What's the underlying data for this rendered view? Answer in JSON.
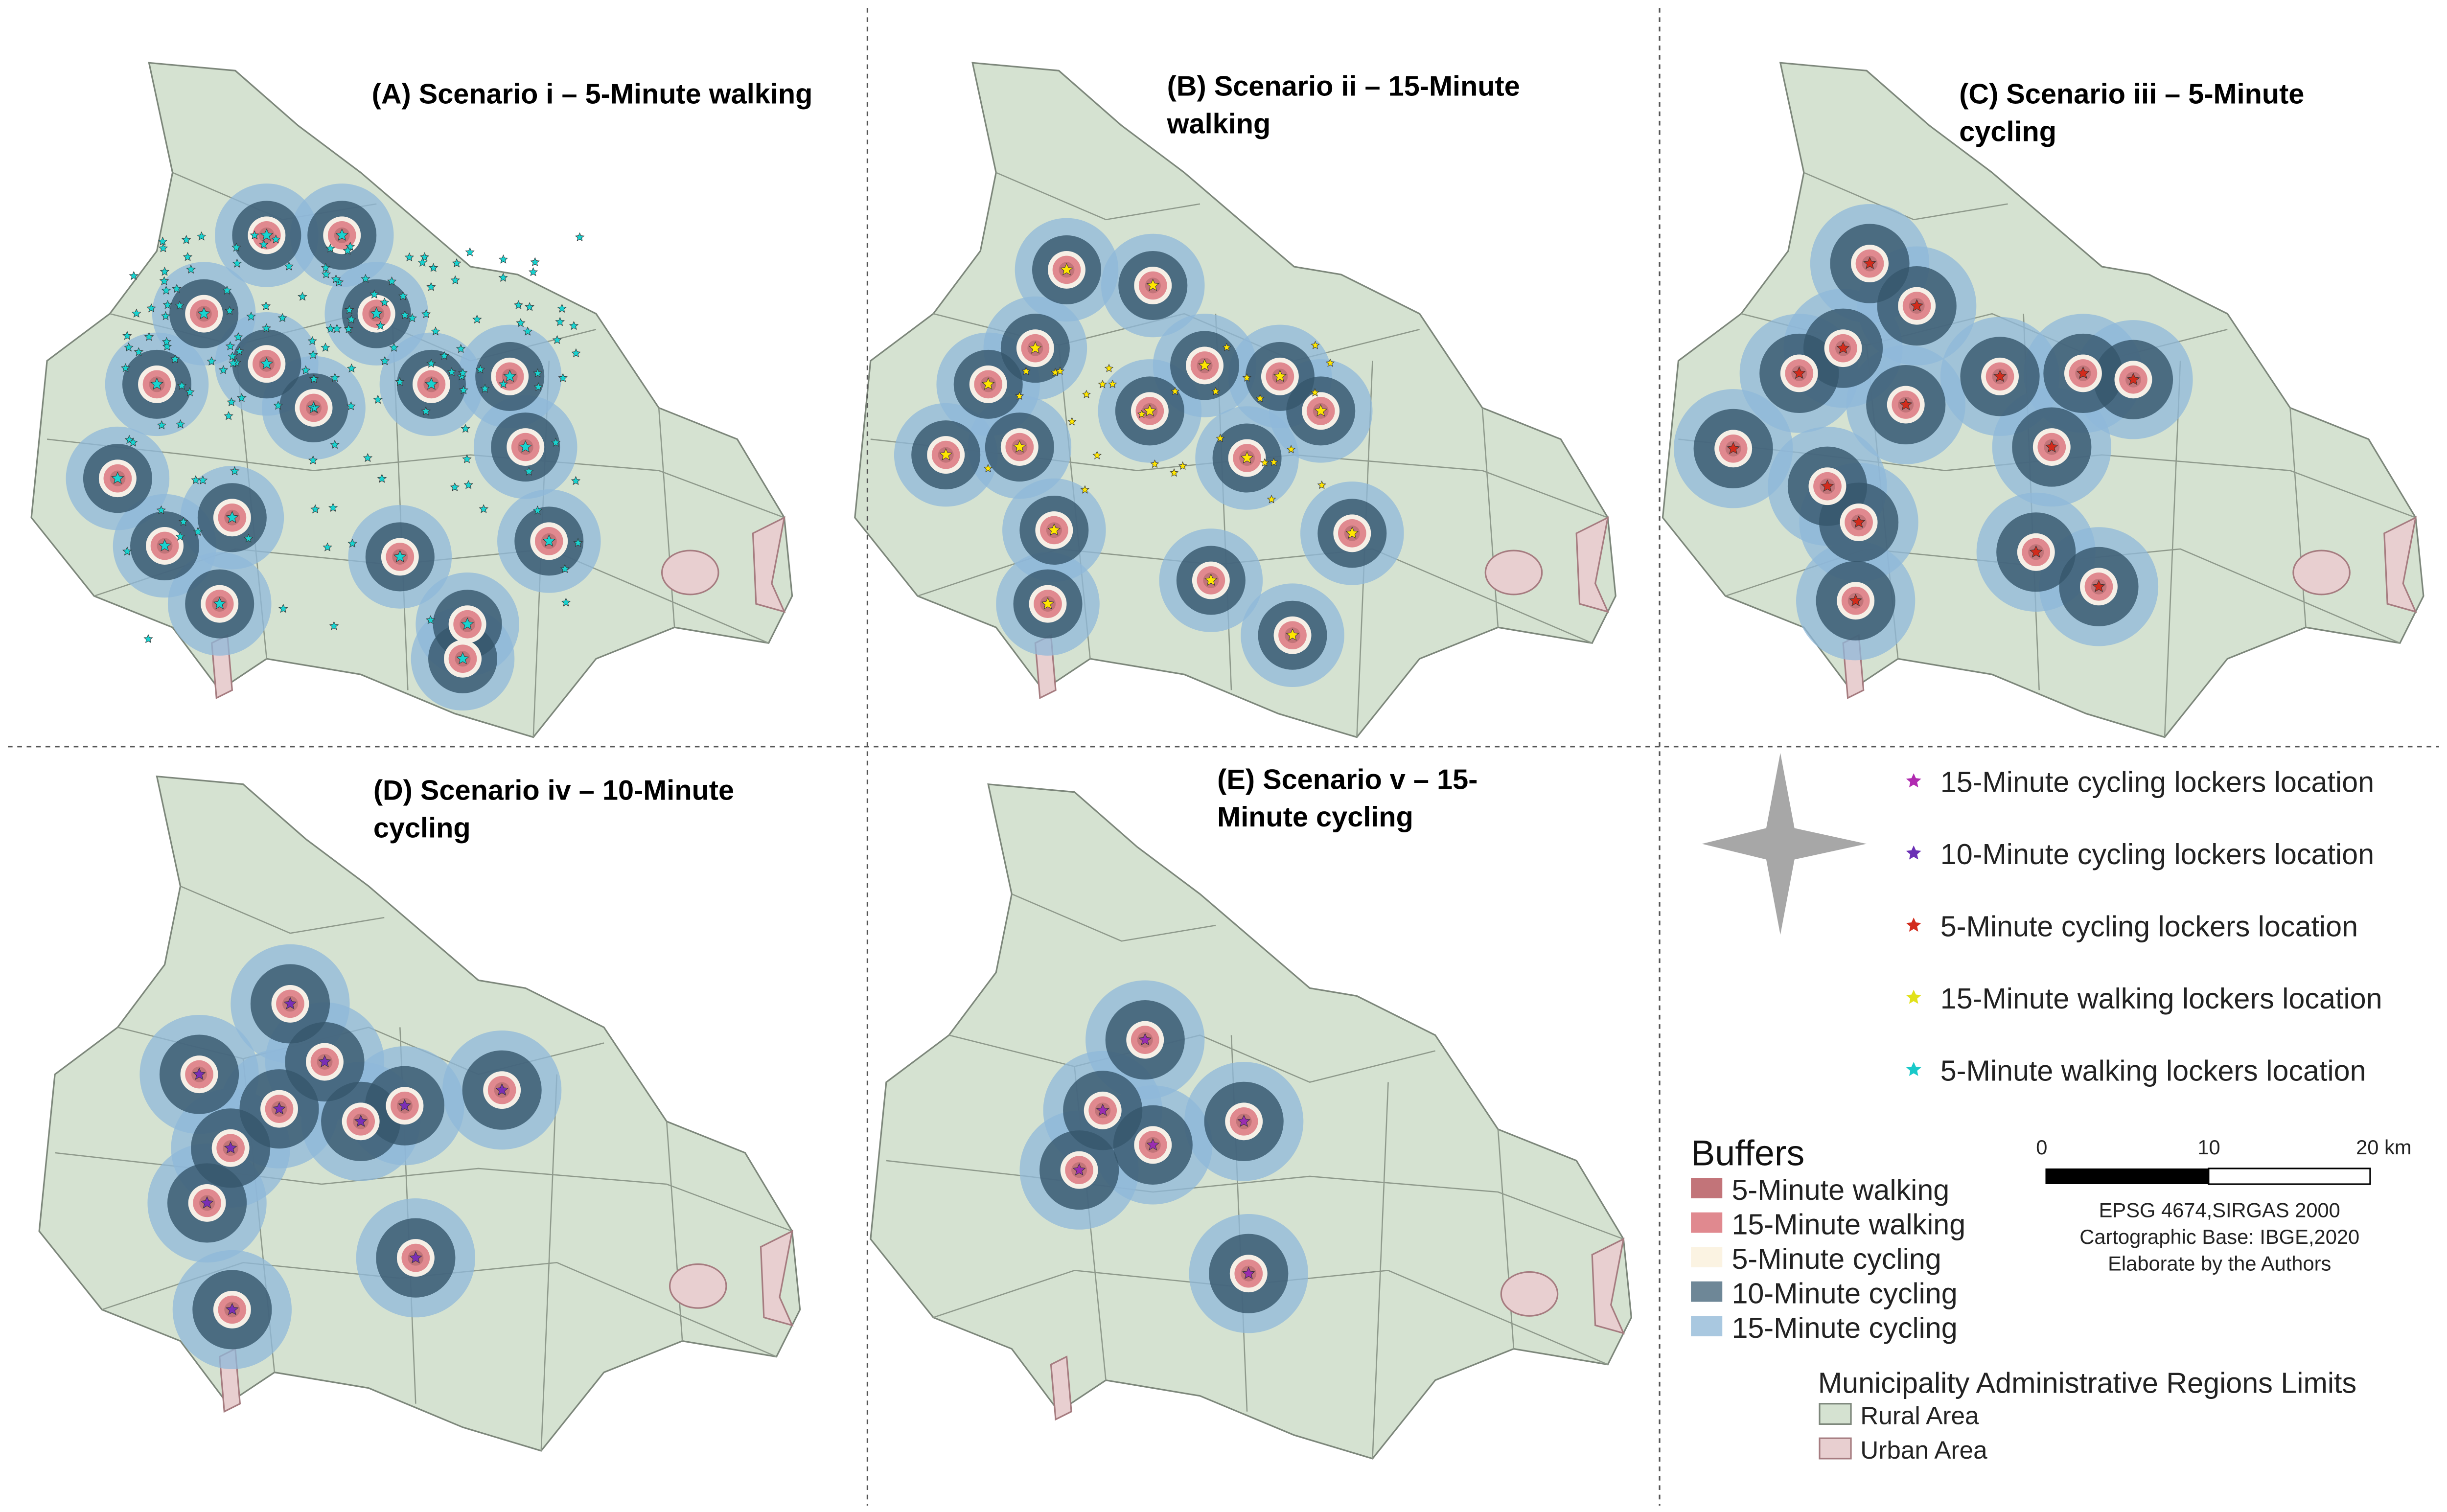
{
  "panels": [
    {
      "title_lines": [
        "(A) Scenario i – 5-Minute walking"
      ]
    },
    {
      "title_lines": [
        "(B) Scenario ii – 15-Minute",
        "walking"
      ]
    },
    {
      "title_lines": [
        "(C) Scenario iii – 5-Minute",
        "cycling"
      ]
    },
    {
      "title_lines": [
        "(D) Scenario iv – 10-Minute",
        "cycling"
      ]
    },
    {
      "title_lines": [
        "(E) Scenario v – 15-",
        "Minute cycling"
      ]
    }
  ],
  "legend": {
    "lockers": [
      "15-Minute cycling lockers location",
      "10-Minute cycling lockers location",
      "5-Minute cycling lockers location",
      "15-Minute walking lockers location",
      "5-Minute walking lockers location"
    ],
    "buffers_title": "Buffers",
    "buffers": [
      "5-Minute walking",
      "15-Minute walking",
      "5-Minute cycling",
      "10-Minute cycling",
      "15-Minute cycling"
    ],
    "regions_title": "Municipality Administrative Regions Limits",
    "regions": [
      "Rural Area",
      "Urban Area"
    ]
  },
  "scale_bar": {
    "labels": [
      "0",
      "10",
      "20 km"
    ]
  },
  "credits": [
    "EPSG 4674,SIRGAS 2000",
    "Cartographic Base: IBGE,2020",
    "Elaborate by the Authors"
  ]
}
